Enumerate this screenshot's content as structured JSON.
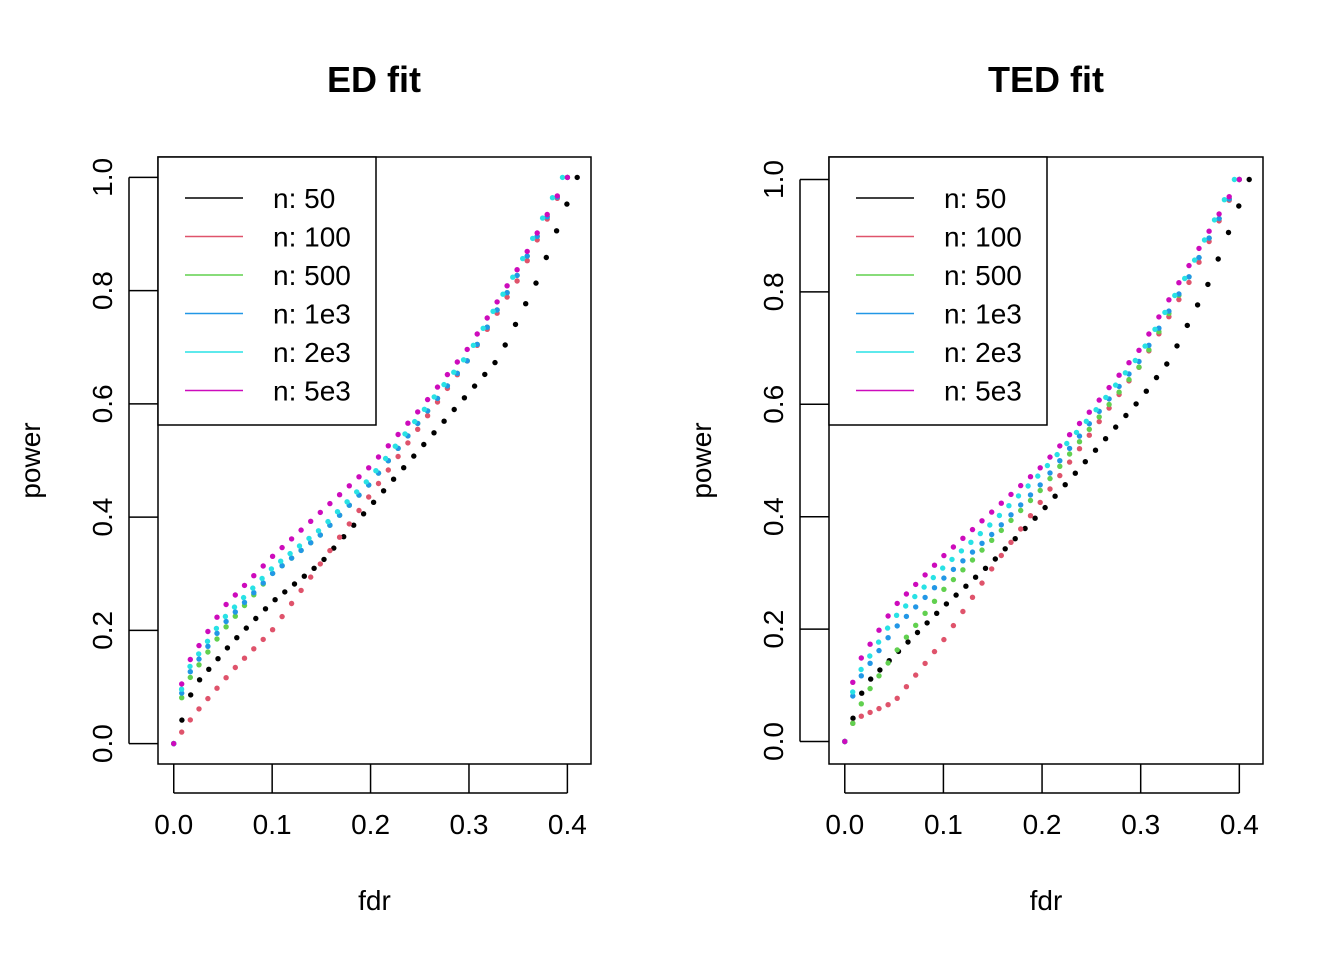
{
  "chart_data": [
    {
      "type": "scatter",
      "title": "ED fit",
      "xlabel": "fdr",
      "ylabel": "power",
      "xlim": [
        -0.016,
        0.424
      ],
      "ylim": [
        -0.036,
        1.036
      ],
      "xticks": [
        "0.0",
        "0.1",
        "0.2",
        "0.3",
        "0.4"
      ],
      "yticks": [
        "0.0",
        "0.2",
        "0.4",
        "0.6",
        "0.8",
        "1.0"
      ],
      "legend_position": "top-left",
      "series": [
        {
          "name": "n: 50",
          "color": "#000000",
          "x_start": 0.0,
          "x_end": 0.41,
          "knots": [
            [
              0.0,
              0.0
            ],
            [
              0.02,
              0.1
            ],
            [
              0.06,
              0.18
            ],
            [
              0.1,
              0.25
            ],
            [
              0.15,
              0.32
            ],
            [
              0.2,
              0.42
            ],
            [
              0.25,
              0.52
            ],
            [
              0.3,
              0.62
            ],
            [
              0.33,
              0.68
            ],
            [
              0.37,
              0.82
            ],
            [
              0.41,
              1.0
            ]
          ]
        },
        {
          "name": "n: 100",
          "color": "#DF536B",
          "x_start": 0.0,
          "x_end": 0.4,
          "knots": [
            [
              0.0,
              0.0
            ],
            [
              0.02,
              0.05
            ],
            [
              0.06,
              0.13
            ],
            [
              0.1,
              0.2
            ],
            [
              0.15,
              0.32
            ],
            [
              0.2,
              0.44
            ],
            [
              0.25,
              0.56
            ],
            [
              0.3,
              0.68
            ],
            [
              0.35,
              0.82
            ],
            [
              0.4,
              1.0
            ]
          ]
        },
        {
          "name": "n: 500",
          "color": "#61D04F",
          "x_start": 0.0,
          "x_end": 0.4,
          "knots": [
            [
              0.0,
              0.0
            ],
            [
              0.01,
              0.1
            ],
            [
              0.05,
              0.2
            ],
            [
              0.1,
              0.3
            ],
            [
              0.15,
              0.37
            ],
            [
              0.2,
              0.46
            ],
            [
              0.25,
              0.57
            ],
            [
              0.3,
              0.68
            ],
            [
              0.35,
              0.83
            ],
            [
              0.4,
              1.0
            ]
          ]
        },
        {
          "name": "n: 1e3",
          "color": "#2297E6",
          "x_start": 0.0,
          "x_end": 0.4,
          "knots": [
            [
              0.0,
              0.0
            ],
            [
              0.01,
              0.11
            ],
            [
              0.05,
              0.21
            ],
            [
              0.1,
              0.3
            ],
            [
              0.15,
              0.37
            ],
            [
              0.2,
              0.46
            ],
            [
              0.25,
              0.57
            ],
            [
              0.3,
              0.68
            ],
            [
              0.35,
              0.83
            ],
            [
              0.4,
              1.0
            ]
          ]
        },
        {
          "name": "n: 2e3",
          "color": "#28E2E5",
          "x_start": 0.0,
          "x_end": 0.395,
          "knots": [
            [
              0.0,
              0.0
            ],
            [
              0.01,
              0.12
            ],
            [
              0.05,
              0.22
            ],
            [
              0.1,
              0.31
            ],
            [
              0.15,
              0.38
            ],
            [
              0.2,
              0.47
            ],
            [
              0.25,
              0.58
            ],
            [
              0.3,
              0.69
            ],
            [
              0.35,
              0.84
            ],
            [
              0.395,
              1.0
            ]
          ]
        },
        {
          "name": "n: 5e3",
          "color": "#CD0BBC",
          "x_start": 0.0,
          "x_end": 0.4,
          "knots": [
            [
              0.0,
              0.0
            ],
            [
              0.01,
              0.13
            ],
            [
              0.05,
              0.24
            ],
            [
              0.1,
              0.33
            ],
            [
              0.15,
              0.41
            ],
            [
              0.2,
              0.49
            ],
            [
              0.25,
              0.59
            ],
            [
              0.3,
              0.7
            ],
            [
              0.35,
              0.84
            ],
            [
              0.4,
              1.0
            ]
          ]
        }
      ]
    },
    {
      "type": "scatter",
      "title": "TED fit",
      "xlabel": "fdr",
      "ylabel": "power",
      "xlim": [
        -0.016,
        0.424
      ],
      "ylim": [
        -0.04,
        1.04
      ],
      "xticks": [
        "0.0",
        "0.1",
        "0.2",
        "0.3",
        "0.4"
      ],
      "yticks": [
        "0.0",
        "0.2",
        "0.4",
        "0.6",
        "0.8",
        "1.0"
      ],
      "legend_position": "top-left",
      "series": [
        {
          "name": "n: 50",
          "color": "#000000",
          "x_start": 0.0,
          "x_end": 0.41,
          "knots": [
            [
              0.0,
              0.0
            ],
            [
              0.02,
              0.1
            ],
            [
              0.06,
              0.17
            ],
            [
              0.1,
              0.24
            ],
            [
              0.15,
              0.32
            ],
            [
              0.2,
              0.41
            ],
            [
              0.25,
              0.51
            ],
            [
              0.3,
              0.61
            ],
            [
              0.33,
              0.68
            ],
            [
              0.37,
              0.82
            ],
            [
              0.41,
              1.0
            ]
          ]
        },
        {
          "name": "n: 100",
          "color": "#DF536B",
          "x_start": 0.0,
          "x_end": 0.4,
          "knots": [
            [
              0.0,
              0.0
            ],
            [
              0.01,
              0.04
            ],
            [
              0.05,
              0.07
            ],
            [
              0.1,
              0.18
            ],
            [
              0.15,
              0.31
            ],
            [
              0.2,
              0.43
            ],
            [
              0.25,
              0.55
            ],
            [
              0.3,
              0.67
            ],
            [
              0.35,
              0.82
            ],
            [
              0.4,
              1.0
            ]
          ]
        },
        {
          "name": "n: 500",
          "color": "#61D04F",
          "x_start": 0.0,
          "x_end": 0.4,
          "knots": [
            [
              0.0,
              0.0
            ],
            [
              0.02,
              0.08
            ],
            [
              0.06,
              0.18
            ],
            [
              0.1,
              0.27
            ],
            [
              0.15,
              0.36
            ],
            [
              0.2,
              0.45
            ],
            [
              0.25,
              0.56
            ],
            [
              0.3,
              0.67
            ],
            [
              0.35,
              0.83
            ],
            [
              0.4,
              1.0
            ]
          ]
        },
        {
          "name": "n: 1e3",
          "color": "#2297E6",
          "x_start": 0.0,
          "x_end": 0.4,
          "knots": [
            [
              0.0,
              0.0
            ],
            [
              0.01,
              0.1
            ],
            [
              0.05,
              0.2
            ],
            [
              0.1,
              0.29
            ],
            [
              0.15,
              0.37
            ],
            [
              0.2,
              0.46
            ],
            [
              0.25,
              0.57
            ],
            [
              0.3,
              0.68
            ],
            [
              0.35,
              0.83
            ],
            [
              0.4,
              1.0
            ]
          ]
        },
        {
          "name": "n: 2e3",
          "color": "#28E2E5",
          "x_start": 0.0,
          "x_end": 0.395,
          "knots": [
            [
              0.0,
              0.0
            ],
            [
              0.01,
              0.11
            ],
            [
              0.05,
              0.22
            ],
            [
              0.1,
              0.31
            ],
            [
              0.15,
              0.39
            ],
            [
              0.2,
              0.48
            ],
            [
              0.25,
              0.58
            ],
            [
              0.3,
              0.69
            ],
            [
              0.35,
              0.84
            ],
            [
              0.395,
              1.0
            ]
          ]
        },
        {
          "name": "n: 5e3",
          "color": "#CD0BBC",
          "x_start": 0.0,
          "x_end": 0.4,
          "knots": [
            [
              0.0,
              0.0
            ],
            [
              0.01,
              0.13
            ],
            [
              0.05,
              0.24
            ],
            [
              0.1,
              0.33
            ],
            [
              0.15,
              0.41
            ],
            [
              0.2,
              0.49
            ],
            [
              0.25,
              0.59
            ],
            [
              0.3,
              0.7
            ],
            [
              0.35,
              0.85
            ],
            [
              0.4,
              1.0
            ]
          ]
        }
      ]
    }
  ]
}
